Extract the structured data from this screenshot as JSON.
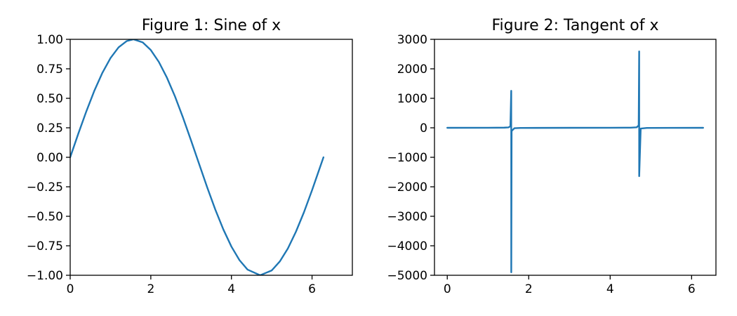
{
  "chart_data": [
    {
      "type": "line",
      "title": "Figure 1: Sine of x",
      "xlim": [
        0,
        7
      ],
      "ylim": [
        -1.0,
        1.0
      ],
      "x_ticks": [
        0,
        2,
        4,
        6
      ],
      "x_tick_labels": [
        "0",
        "2",
        "4",
        "6"
      ],
      "y_ticks": [
        -1.0,
        -0.75,
        -0.5,
        -0.25,
        0.0,
        0.25,
        0.5,
        0.75,
        1.0
      ],
      "y_tick_labels": [
        "−1.00",
        "−0.75",
        "−0.50",
        "−0.25",
        "0.00",
        "0.25",
        "0.50",
        "0.75",
        "1.00"
      ],
      "grid": false,
      "series": [
        {
          "color": "#1f77b4",
          "x": [
            0,
            0.2,
            0.4,
            0.6,
            0.8,
            1.0,
            1.2,
            1.4,
            1.5708,
            1.8,
            2.0,
            2.2,
            2.4,
            2.6,
            2.8,
            3.0,
            3.1416,
            3.4,
            3.6,
            3.8,
            4.0,
            4.2,
            4.4,
            4.7124,
            5.0,
            5.2,
            5.4,
            5.6,
            5.8,
            6.0,
            6.2832
          ],
          "y": [
            0,
            0.199,
            0.389,
            0.565,
            0.717,
            0.841,
            0.932,
            0.985,
            1.0,
            0.974,
            0.909,
            0.808,
            0.675,
            0.516,
            0.335,
            0.141,
            0,
            -0.256,
            -0.443,
            -0.612,
            -0.757,
            -0.872,
            -0.952,
            -1.0,
            -0.959,
            -0.883,
            -0.773,
            -0.631,
            -0.465,
            -0.279,
            0
          ]
        }
      ]
    },
    {
      "type": "line",
      "title": "Figure 2: Tangent of x",
      "xlim": [
        -0.3142,
        6.5974
      ],
      "ylim": [
        -5000,
        3000
      ],
      "x_ticks": [
        0,
        2,
        4,
        6
      ],
      "x_tick_labels": [
        "0",
        "2",
        "4",
        "6"
      ],
      "y_ticks": [
        -5000,
        -4000,
        -3000,
        -2000,
        -1000,
        0,
        1000,
        2000,
        3000
      ],
      "y_tick_labels": [
        "−5000",
        "−4000",
        "−3000",
        "−2000",
        "−1000",
        "0",
        "1000",
        "2000",
        "3000"
      ],
      "grid": false,
      "series": [
        {
          "color": "#1f77b4",
          "x": [
            0,
            1.0,
            1.4,
            1.5,
            1.55,
            1.57,
            1.5707,
            1.571,
            1.5715,
            1.58,
            1.65,
            1.8,
            3.0,
            4.0,
            4.5,
            4.65,
            4.7,
            4.712,
            4.7123,
            4.7125,
            4.713,
            4.75,
            4.9,
            5.5,
            6.2832
          ],
          "y": [
            0,
            1.6,
            5.8,
            14.1,
            48.1,
            1255,
            1255,
            -4900,
            -4900,
            -108.6,
            -12.6,
            -4.3,
            -0.14,
            1.16,
            4.6,
            16.2,
            79,
            2590,
            2590,
            -1640,
            -1640,
            -26.5,
            -5.2,
            -0.7,
            0
          ]
        }
      ]
    }
  ]
}
